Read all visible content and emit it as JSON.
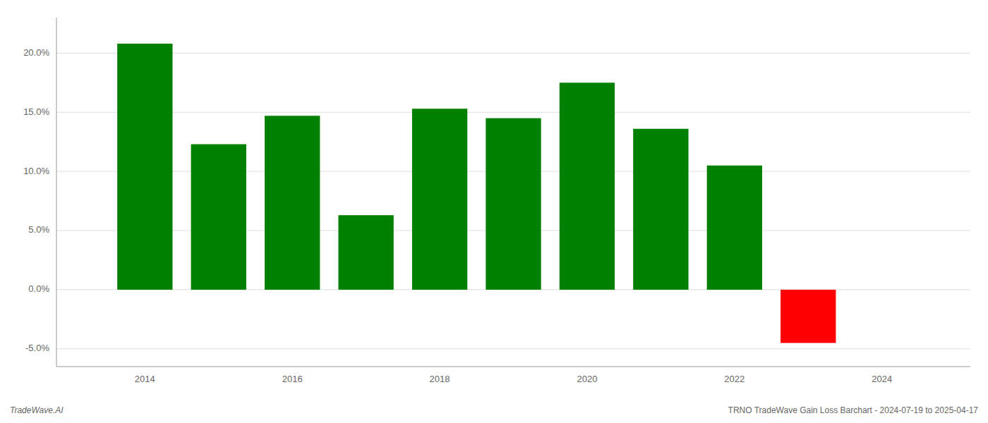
{
  "chart_data": {
    "type": "bar",
    "x": [
      2014,
      2015,
      2016,
      2017,
      2018,
      2019,
      2020,
      2021,
      2022,
      2023
    ],
    "values": [
      20.8,
      12.3,
      14.7,
      6.3,
      15.3,
      14.5,
      17.5,
      13.6,
      10.5,
      -4.5
    ],
    "colors": [
      "#008000",
      "#008000",
      "#008000",
      "#008000",
      "#008000",
      "#008000",
      "#008000",
      "#008000",
      "#008000",
      "#ff0000"
    ],
    "xlim": [
      2012.8,
      2025.2
    ],
    "xticks": [
      2014,
      2016,
      2018,
      2020,
      2022,
      2024
    ],
    "ylim": [
      -6.5,
      23.0
    ],
    "yticks": [
      {
        "value": -5.0,
        "label": "-5.0%"
      },
      {
        "value": 0.0,
        "label": "0.0%"
      },
      {
        "value": 5.0,
        "label": "5.0%"
      },
      {
        "value": 10.0,
        "label": "10.0%"
      },
      {
        "value": 15.0,
        "label": "15.0%"
      },
      {
        "value": 20.0,
        "label": "20.0%"
      }
    ],
    "grid": true,
    "annotations": [
      "TradeWave.AI",
      "TRNO TradeWave Gain Loss Barchart - 2024-07-19 to 2025-04-17"
    ]
  }
}
